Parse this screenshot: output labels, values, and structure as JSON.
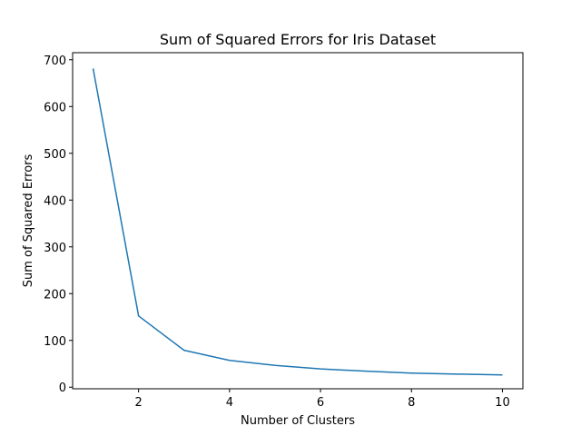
{
  "chart_data": {
    "type": "line",
    "title": "Sum of Squared Errors for Iris Dataset",
    "xlabel": "Number of Clusters",
    "ylabel": "Sum of Squared Errors",
    "x": [
      1,
      2,
      3,
      4,
      5,
      6,
      7,
      8,
      9,
      10
    ],
    "series": [
      {
        "values": [
          681.4,
          152.3,
          78.9,
          57.3,
          46.5,
          39.0,
          34.3,
          30.1,
          28.0,
          26.3
        ]
      }
    ],
    "xlim": [
      0.55,
      10.45
    ],
    "ylim": [
      -3.4,
      715.1
    ],
    "xticks": [
      2,
      4,
      6,
      8,
      10
    ],
    "yticks": [
      0,
      100,
      200,
      300,
      400,
      500,
      600,
      700
    ],
    "grid": false,
    "line_color": "#1f77b4"
  }
}
